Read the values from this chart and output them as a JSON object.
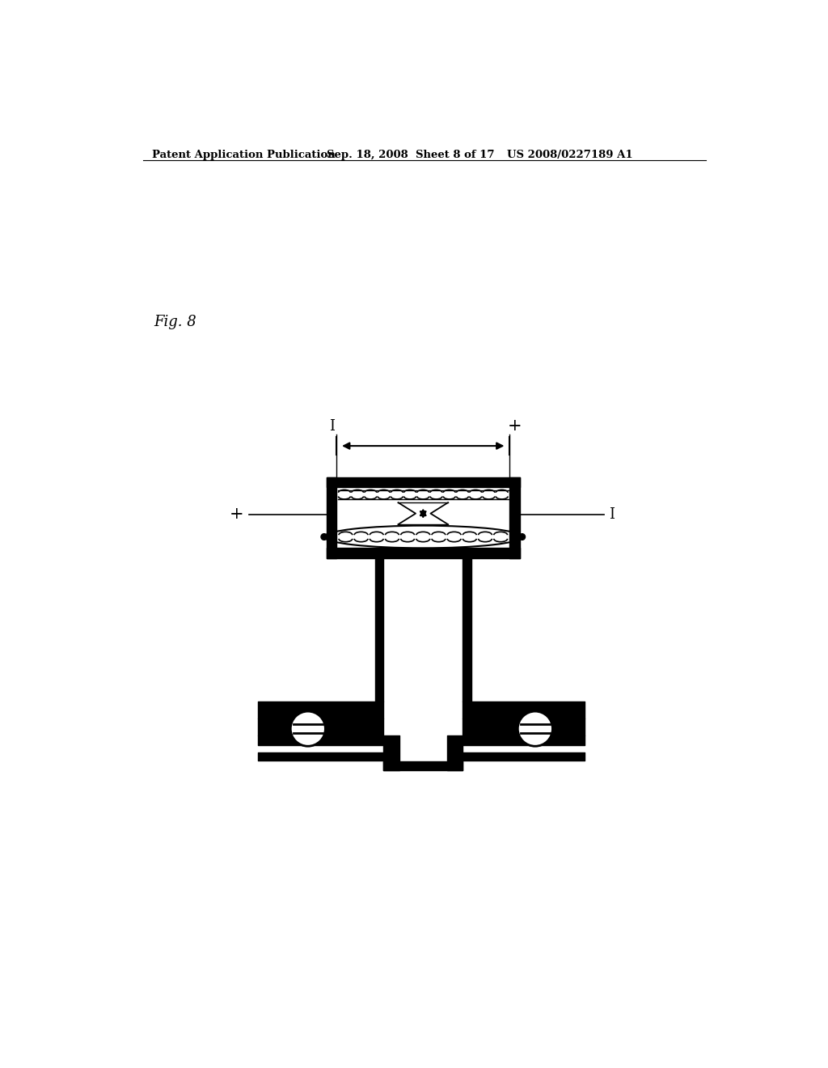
{
  "background_color": "#ffffff",
  "header_text1": "Patent Application Publication",
  "header_text2": "Sep. 18, 2008  Sheet 8 of 17",
  "header_text3": "US 2008/0227189 A1",
  "fig_label": "Fig. 8",
  "line_color": "#000000"
}
